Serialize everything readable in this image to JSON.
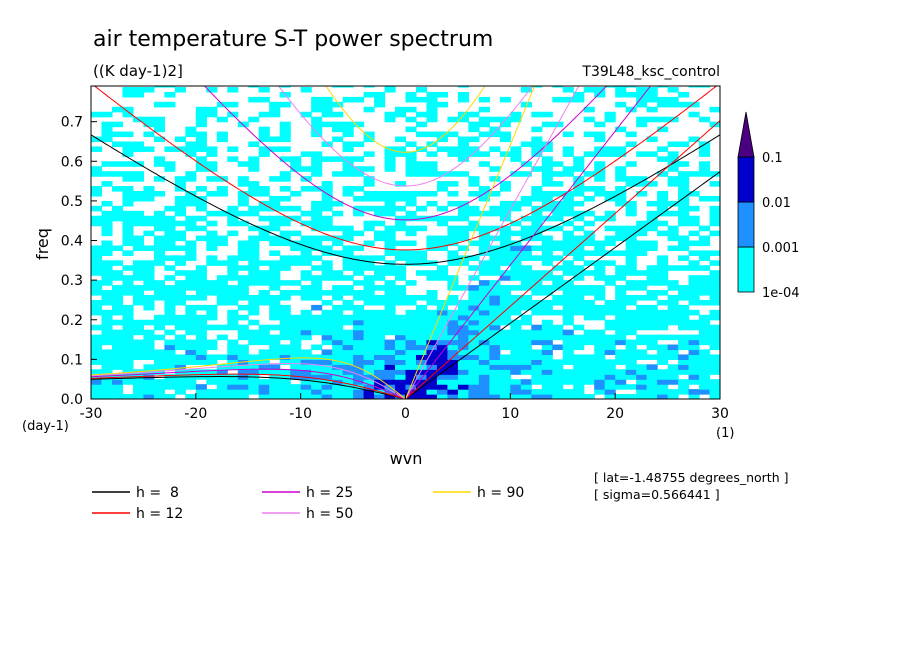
{
  "chart_data": {
    "type": "heatmap",
    "title": "air temperature S-T power spectrum",
    "units": "((K day-1)2]",
    "experiment": "T39L48_ksc_control",
    "xlabel": "wvn",
    "ylabel": "freq",
    "x_unit_label": "(1)",
    "y_unit_label": "(day-1)",
    "xlim": [
      -30,
      30
    ],
    "ylim": [
      0,
      0.79
    ],
    "xticks": [
      -30,
      -20,
      -10,
      0,
      10,
      20,
      30
    ],
    "xtick_labels": [
      "-30",
      "-20",
      "-10",
      "0",
      "10",
      "20",
      "30"
    ],
    "yticks": [
      0,
      0.1,
      0.2,
      0.3,
      0.4,
      0.5,
      0.6,
      0.7
    ],
    "ytick_labels": [
      "0.0",
      "0.1",
      "0.2",
      "0.3",
      "0.4",
      "0.5",
      "0.6",
      "0.7"
    ],
    "colorbar": {
      "levels": [
        0.0001,
        0.001,
        0.01,
        0.1
      ],
      "labels": [
        "1e-04",
        "0.001",
        "0.01",
        "0.1"
      ],
      "colors": [
        "#00ffff",
        "#1e90ff",
        "#0000cd",
        "#4b0082"
      ],
      "extend": "max"
    },
    "dispersion_curves": [
      {
        "name": "h =  8",
        "h": 8,
        "color": "#000000"
      },
      {
        "name": "h = 12",
        "h": 12,
        "color": "#ff0000"
      },
      {
        "name": "h = 25",
        "h": 25,
        "color": "#cc00cc"
      },
      {
        "name": "h = 50",
        "h": 50,
        "color": "#ee82ee"
      },
      {
        "name": "h = 90",
        "h": 90,
        "color": "#ffd700"
      }
    ],
    "annotations": [
      "[ lat=-1.48755 degrees_north ]",
      "[ sigma=0.566441 ]"
    ]
  }
}
